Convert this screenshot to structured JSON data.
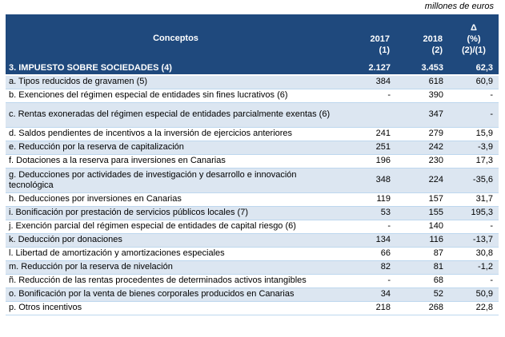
{
  "unit_note": "millones de euros",
  "header": {
    "concept": "Conceptos",
    "col_2017": "2017",
    "col_2017_note": "(1)",
    "col_2018": "2018",
    "col_2018_note": "(2)",
    "delta_symbol": "Δ",
    "delta_pct": "(%)",
    "delta_note": "(2)/(1)"
  },
  "total": {
    "label": "3. IMPUESTO SOBRE SOCIEDADES (4)",
    "v2017": "2.127",
    "v2018": "3.453",
    "delta": "62,3"
  },
  "rows": [
    {
      "label": "a. Tipos reducidos de gravamen (5)",
      "v2017": "384",
      "v2018": "618",
      "delta": "60,9"
    },
    {
      "label": "b. Exenciones del régimen especial de entidades sin fines lucrativos (6)",
      "v2017": "-",
      "v2018": "390",
      "delta": "-"
    },
    {
      "label": "c. Rentas exoneradas del régimen especial de entidades parcialmente exentas (6)",
      "v2017": "",
      "v2018": "347",
      "delta": "-"
    },
    {
      "label": "d. Saldos pendientes de incentivos a la inversión de ejercicios anteriores",
      "v2017": "241",
      "v2018": "279",
      "delta": "15,9"
    },
    {
      "label": "e. Reducción por la reserva de capitalización",
      "v2017": "251",
      "v2018": "242",
      "delta": "-3,9"
    },
    {
      "label": "f. Dotaciones a la reserva para inversiones en Canarias",
      "v2017": "196",
      "v2018": "230",
      "delta": "17,3"
    },
    {
      "label": "g. Deducciones por actividades de investigación y desarrollo e innovación tecnológica",
      "v2017": "348",
      "v2018": "224",
      "delta": "-35,6"
    },
    {
      "label": "h. Deducciones por inversiones en Canarias",
      "v2017": "119",
      "v2018": "157",
      "delta": "31,7"
    },
    {
      "label": "i. Bonificación por prestación de servicios públicos locales (7)",
      "v2017": "53",
      "v2018": "155",
      "delta": "195,3"
    },
    {
      "label": "j. Exención parcial del régimen especial de entidades de capital riesgo (6)",
      "v2017": "-",
      "v2018": "140",
      "delta": "-"
    },
    {
      "label": "k. Deducción por donaciones",
      "v2017": "134",
      "v2018": "116",
      "delta": "-13,7"
    },
    {
      "label": "l. Libertad de amortización y amortizaciones especiales",
      "v2017": "66",
      "v2018": "87",
      "delta": "30,8"
    },
    {
      "label": "m. Reducción por la reserva de nivelación",
      "v2017": "82",
      "v2018": "81",
      "delta": "-1,2"
    },
    {
      "label": "ñ. Reducción de las rentas procedentes de determinados activos intangibles",
      "v2017": "-",
      "v2018": "68",
      "delta": "-"
    },
    {
      "label": "o. Bonificación por la venta de bienes corporales producidos en Canarias",
      "v2017": "34",
      "v2018": "52",
      "delta": "50,9"
    },
    {
      "label": "p. Otros incentivos",
      "v2017": "218",
      "v2018": "268",
      "delta": "22,8"
    }
  ]
}
